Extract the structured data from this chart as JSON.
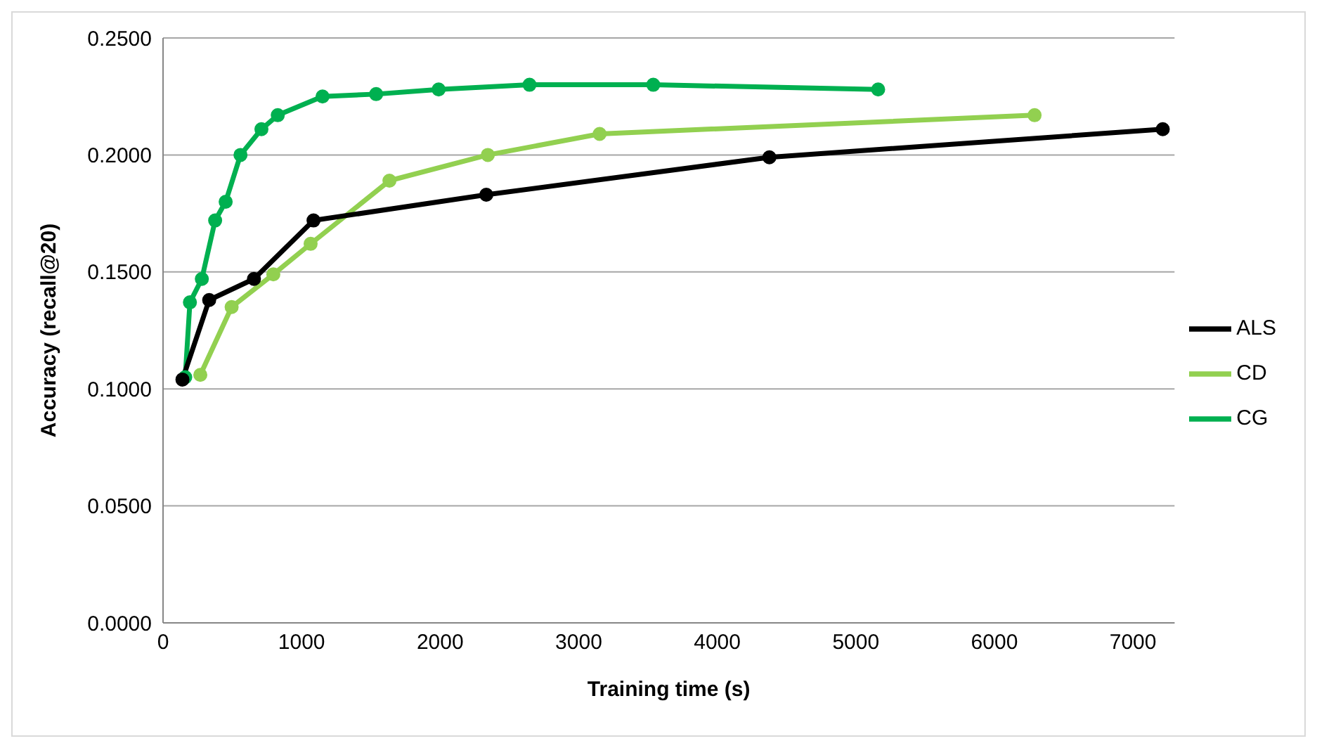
{
  "chart_data": {
    "type": "line",
    "xlabel": "Training time (s)",
    "ylabel": "Accuracy (recall@20)",
    "xlim": [
      0,
      7300
    ],
    "xticks": [
      0,
      1000,
      2000,
      3000,
      4000,
      5000,
      6000,
      7000
    ],
    "ylim": [
      0,
      0.25
    ],
    "yticks": [
      {
        "value": 0,
        "label": "0.0000"
      },
      {
        "value": 0.05,
        "label": "0.0500"
      },
      {
        "value": 0.1,
        "label": "0.1000"
      },
      {
        "value": 0.15,
        "label": "0.1500"
      },
      {
        "value": 0.2,
        "label": "0.2000"
      },
      {
        "value": 0.25,
        "label": "0.2500"
      }
    ],
    "grid": "y",
    "legend": "right",
    "marker": "circle",
    "line_style": "solid",
    "series": [
      {
        "name": "ALS",
        "color": "#000000",
        "x": [
          140,
          333,
          656,
          1086,
          2333,
          4376,
          7215
        ],
        "values": [
          0.104,
          0.138,
          0.147,
          0.172,
          0.183,
          0.199,
          0.211
        ]
      },
      {
        "name": "CG",
        "color": "#00b050",
        "x": [
          160,
          194,
          280,
          376,
          452,
          559,
          710,
          828,
          1151,
          1538,
          1989,
          2645,
          3538,
          5161
        ],
        "values": [
          0.105,
          0.137,
          0.147,
          0.172,
          0.18,
          0.2,
          0.211,
          0.217,
          0.225,
          0.226,
          0.228,
          0.23,
          0.23,
          0.228
        ]
      },
      {
        "name": "CD",
        "color": "#92d050",
        "x": [
          269,
          495,
          796,
          1065,
          1634,
          2344,
          3151,
          6290
        ],
        "values": [
          0.106,
          0.135,
          0.149,
          0.162,
          0.189,
          0.2,
          0.209,
          0.217
        ]
      }
    ]
  }
}
